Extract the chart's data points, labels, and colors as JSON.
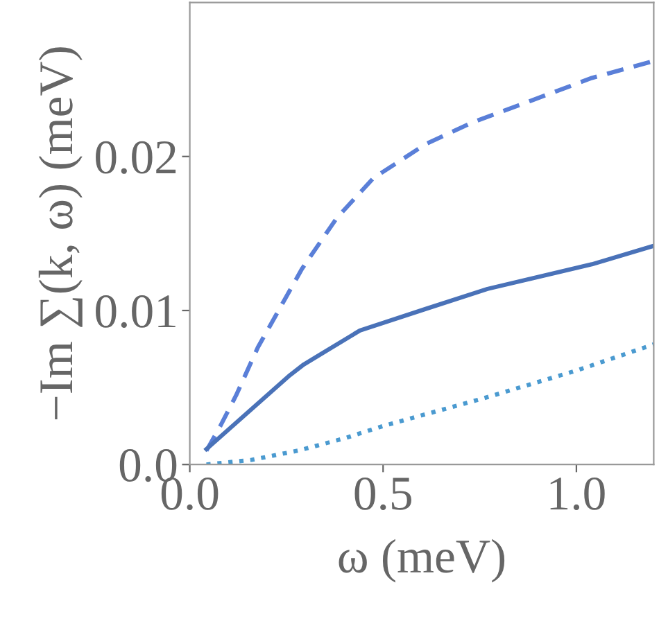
{
  "chart_data": {
    "type": "line",
    "xlabel": "ω (meV)",
    "ylabel": "−Im ∑(k, ω) (meV)",
    "xlim": [
      0,
      1.2
    ],
    "xticks": [
      {
        "value": 0,
        "label": "0.0"
      },
      0.5,
      {
        "value": 1,
        "label": "1.0"
      }
    ],
    "ylim": [
      0,
      0.03
    ],
    "yticks": [
      {
        "value": 0,
        "label": "0.0"
      },
      0.01,
      0.02
    ],
    "grid": false,
    "legend": false,
    "marker": "none",
    "series": [
      {
        "color": "#5a7fd8",
        "line_style": "dashed",
        "x": [
          0.043,
          0.079,
          0.12,
          0.176,
          0.29,
          0.38,
          0.475,
          0.61,
          0.73,
          0.88,
          1.04,
          1.2
        ],
        "values": [
          0.0009,
          0.0025,
          0.0045,
          0.0076,
          0.0127,
          0.016,
          0.0186,
          0.0208,
          0.0222,
          0.0236,
          0.0251,
          0.0262
        ]
      },
      {
        "color": "#4a72b8",
        "line_style": "solid",
        "x": [
          0.043,
          0.259,
          0.295,
          0.44,
          0.61,
          0.77,
          1.04,
          1.2
        ],
        "values": [
          0.001,
          0.0058,
          0.0065,
          0.0087,
          0.0101,
          0.0114,
          0.013,
          0.0142
        ]
      },
      {
        "color": "#4a9ad0",
        "line_style": "dotted",
        "x": [
          0.043,
          0.16,
          0.28,
          0.4,
          0.5,
          0.76,
          1.0,
          1.2
        ],
        "values": [
          0.0,
          0.0003,
          0.0009,
          0.0017,
          0.0025,
          0.0043,
          0.0061,
          0.0078
        ]
      }
    ]
  }
}
